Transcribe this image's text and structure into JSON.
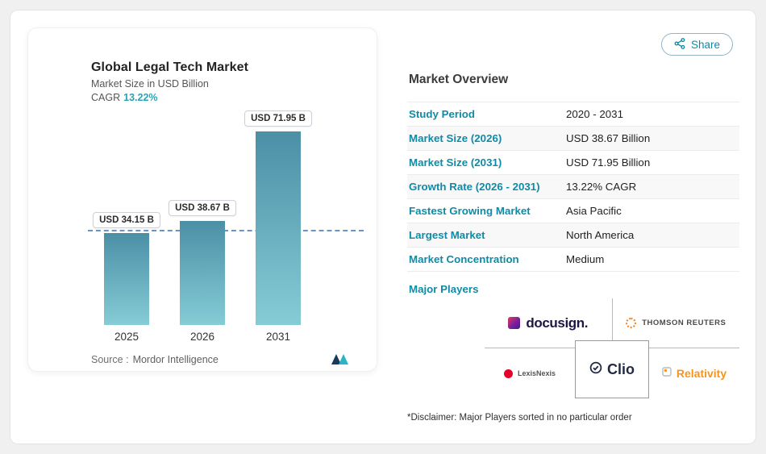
{
  "colors": {
    "accent": "#0e8ba6",
    "bar_top": "#4b8fa6",
    "bar_bottom": "#85ccd6",
    "dashed_line": "#6a93c8"
  },
  "share": {
    "label": "Share"
  },
  "chart": {
    "title": "Global Legal Tech Market",
    "subtitle": "Market Size in USD Billion",
    "cagr_label": "CAGR",
    "cagr_value": "13.22%",
    "source_label": "Source :",
    "source_value": "Mordor Intelligence"
  },
  "chart_data": {
    "type": "bar",
    "categories": [
      "2025",
      "2026",
      "2031"
    ],
    "values": [
      34.15,
      38.67,
      71.95
    ],
    "labels": [
      "USD 34.15 B",
      "USD 38.67 B",
      "USD 71.95 B"
    ],
    "title": "Global Legal Tech Market",
    "ylabel": "Market Size in USD Billion",
    "reference_line": 34.15,
    "ylim": [
      0,
      71.95
    ],
    "grid": false,
    "legend": false
  },
  "overview": {
    "title": "Market Overview",
    "rows": [
      {
        "label": "Study Period",
        "value": "2020 - 2031"
      },
      {
        "label": "Market Size (2026)",
        "value": "USD 38.67 Billion"
      },
      {
        "label": "Market Size (2031)",
        "value": "USD 71.95 Billion"
      },
      {
        "label": "Growth Rate (2026 - 2031)",
        "value": "13.22% CAGR"
      },
      {
        "label": "Fastest Growing Market",
        "value": "Asia Pacific"
      },
      {
        "label": "Largest Market",
        "value": "North America"
      },
      {
        "label": "Market Concentration",
        "value": "Medium"
      }
    ],
    "major_players_label": "Major Players",
    "players": [
      {
        "name": "docusign."
      },
      {
        "name": "THOMSON REUTERS"
      },
      {
        "name": "LexisNexis"
      },
      {
        "name": "Clio"
      },
      {
        "name": "Relativity"
      }
    ],
    "disclaimer": "*Disclaimer: Major Players sorted in no particular order"
  }
}
